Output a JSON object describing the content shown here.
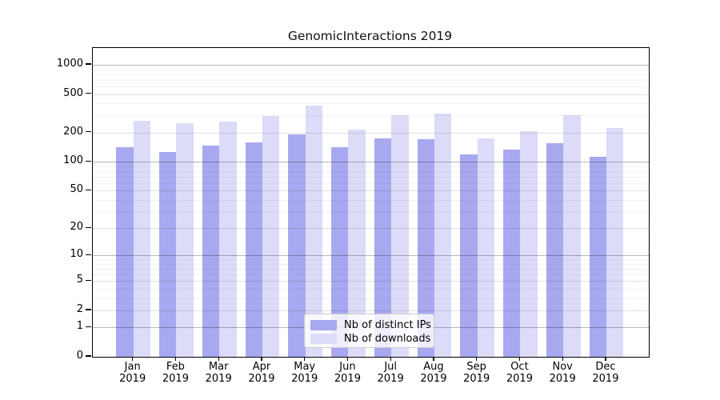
{
  "chart_data": {
    "type": "bar",
    "title": "GenomicInteractions 2019",
    "categories": [
      "Jan",
      "Feb",
      "Mar",
      "Apr",
      "May",
      "Jun",
      "Jul",
      "Aug",
      "Sep",
      "Oct",
      "Nov",
      "Dec"
    ],
    "category_sublabel": "2019",
    "series": [
      {
        "name": "Nb of distinct IPs",
        "color": "#a8a8f0",
        "values": [
          142,
          126,
          146,
          160,
          191,
          142,
          173,
          170,
          120,
          134,
          156,
          112
        ]
      },
      {
        "name": "Nb of downloads",
        "color": "#dcdcf8",
        "values": [
          265,
          250,
          262,
          295,
          382,
          216,
          301,
          316,
          173,
          208,
          304,
          223
        ]
      }
    ],
    "yscale": "log1p",
    "ylabel": "",
    "xlabel": "",
    "y_ticks": [
      0,
      1,
      2,
      5,
      10,
      20,
      50,
      100,
      200,
      500,
      1000
    ],
    "y_minor_ticks": [
      3,
      4,
      6,
      7,
      8,
      9,
      30,
      40,
      60,
      70,
      80,
      90,
      300,
      400,
      600,
      700,
      800,
      900
    ],
    "ylim": [
      0,
      1489
    ],
    "grid": "horizontal",
    "legend_position": "inside-bottom-center"
  }
}
